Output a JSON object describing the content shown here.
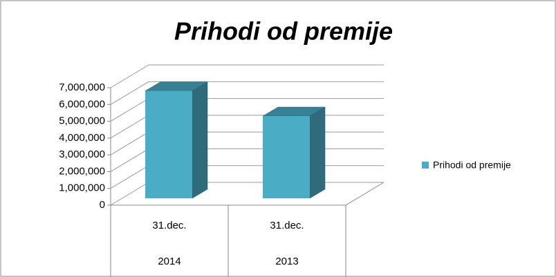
{
  "chart_data": {
    "type": "bar3d",
    "title": "Prihodi od premije",
    "categories": [
      [
        "31.dec.",
        "2014"
      ],
      [
        "31.dec.",
        "2013"
      ]
    ],
    "series": [
      {
        "name": "Prihodi od premije",
        "color": "#4bacc6",
        "values": [
          6400000,
          4900000
        ]
      }
    ],
    "ylim": [
      0,
      7000000
    ],
    "yticks": [
      0,
      {
        "value": 1000000,
        "label": "1,000,000"
      },
      {
        "value": 2000000,
        "label": "2,000,000"
      },
      {
        "value": 3000000,
        "label": "3,000,000"
      },
      {
        "value": 4000000,
        "label": "4,000,000"
      },
      {
        "value": 5000000,
        "label": "5,000,000"
      },
      {
        "value": 6000000,
        "label": "6,000,000"
      },
      {
        "value": 7000000,
        "label": "7,000,000"
      }
    ],
    "grid": true,
    "legend": "right"
  }
}
